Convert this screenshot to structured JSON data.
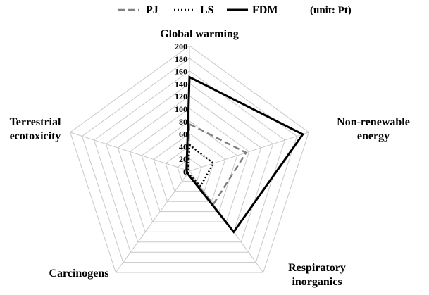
{
  "chart_data": {
    "type": "radar",
    "axes": [
      [
        "Global warming"
      ],
      [
        "Non-renewable",
        "energy"
      ],
      [
        "Respiratory",
        "inorganics"
      ],
      [
        "Carcinogens"
      ],
      [
        "Terrestrial",
        "ecotoxicity"
      ]
    ],
    "rlim": [
      0,
      200
    ],
    "ticks": [
      "0",
      "20",
      "40",
      "60",
      "80",
      "100",
      "120",
      "140",
      "160",
      "180",
      "200"
    ],
    "unit_label": "(unit:  Pt)",
    "grid": true,
    "legend_position": "top",
    "series": [
      {
        "name": "PJ",
        "values": [
          75,
          95,
          65,
          5,
          3
        ],
        "color": "#808080",
        "line": "dashed"
      },
      {
        "name": "LS",
        "values": [
          42,
          40,
          30,
          4,
          2
        ],
        "color": "#000000",
        "line": "dotted"
      },
      {
        "name": "FDM",
        "values": [
          150,
          190,
          120,
          5,
          5
        ],
        "color": "#000000",
        "line": "solid"
      }
    ]
  }
}
